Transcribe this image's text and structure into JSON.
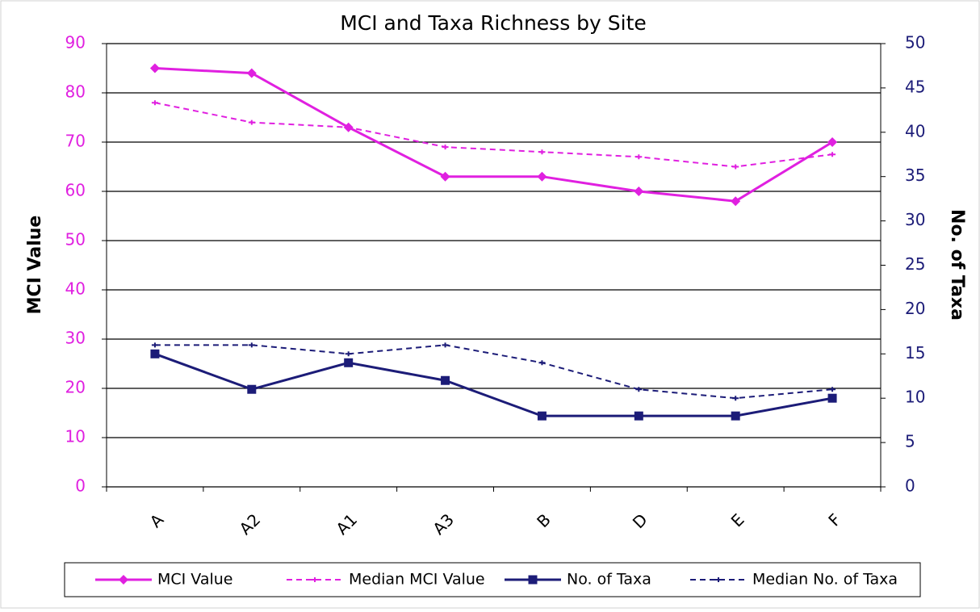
{
  "chart_data": {
    "type": "line",
    "title": "MCI and Taxa Richness by Site",
    "ylabel": "MCI Value",
    "y2label": "No. of Taxa",
    "categories": [
      "A",
      "A2",
      "A1",
      "A3",
      "B",
      "D",
      "E",
      "F"
    ],
    "ylim": [
      0,
      90
    ],
    "yticks": [
      0,
      10,
      20,
      30,
      40,
      50,
      60,
      70,
      80,
      90
    ],
    "y2lim": [
      0,
      50
    ],
    "y2ticks": [
      0,
      5,
      10,
      15,
      20,
      25,
      30,
      35,
      40,
      45,
      50
    ],
    "grid": true,
    "legend": "bottom",
    "series": [
      {
        "name": "MCI Value",
        "color": "#e020e0",
        "dashed": false,
        "marker": "diamond",
        "values": [
          85,
          84,
          73,
          63,
          63,
          60,
          58,
          70
        ]
      },
      {
        "name": "Median MCI Value",
        "color": "#e020e0",
        "dashed": true,
        "marker": "small",
        "values": [
          78,
          74,
          73,
          69,
          68,
          67,
          65,
          67.5
        ]
      },
      {
        "name": "No. of Taxa",
        "color": "#1c1c78",
        "dashed": false,
        "marker": "square",
        "axis": "y2",
        "values": [
          15,
          11,
          14,
          12,
          8,
          8,
          8,
          10
        ]
      },
      {
        "name": "Median No. of Taxa",
        "color": "#1c1c78",
        "dashed": true,
        "marker": "small",
        "axis": "y2",
        "values": [
          16,
          16,
          15,
          16,
          14,
          11,
          10,
          11
        ]
      }
    ]
  }
}
